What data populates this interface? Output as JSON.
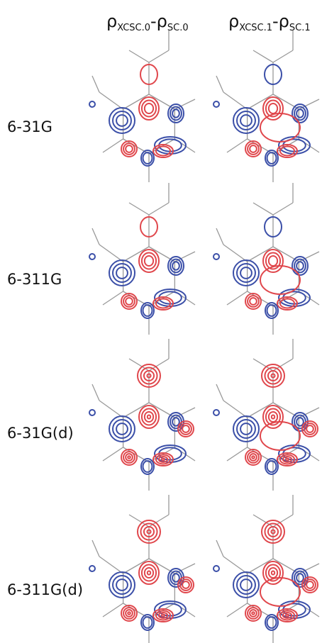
{
  "columns": [
    {
      "rho_a": "ρ",
      "sub_a": "XCSC.0",
      "rho_b": "-ρ",
      "sub_b": "SC.0"
    },
    {
      "rho_a": "ρ",
      "sub_a": "XCSC.1",
      "rho_b": "-ρ",
      "sub_b": "SC.1"
    }
  ],
  "rows": [
    "6-31G",
    "6-311G",
    "6-31G(d)",
    "6-311G(d)"
  ]
}
